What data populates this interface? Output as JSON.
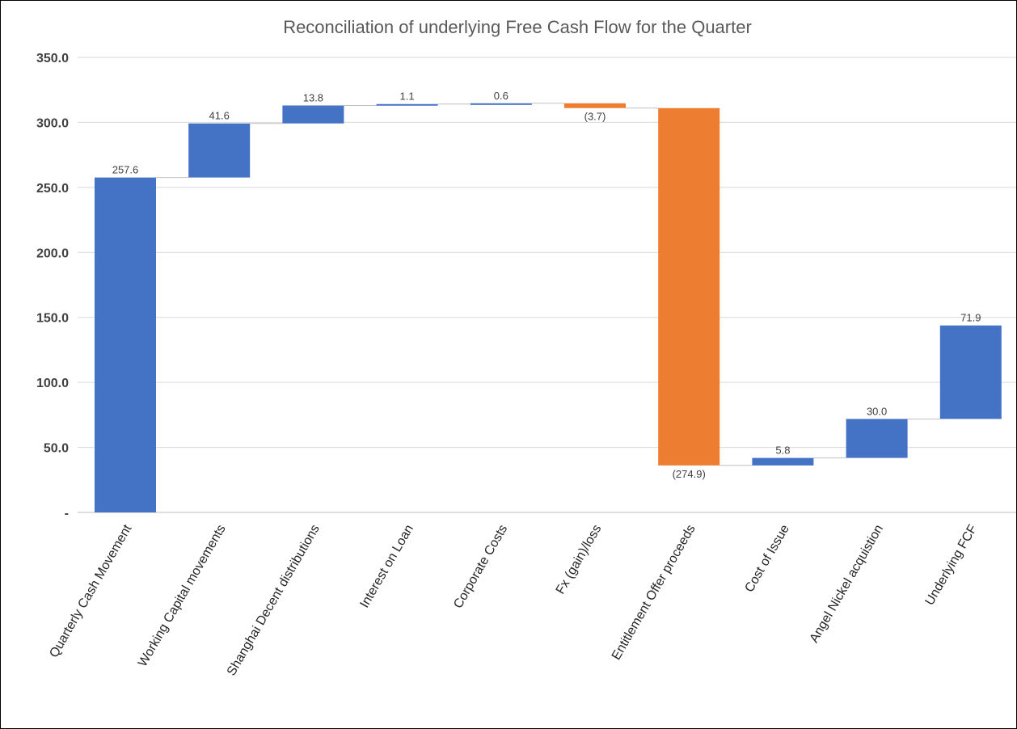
{
  "chart_data": {
    "type": "bar",
    "subtype": "waterfall",
    "title": "Reconciliation of underlying Free Cash Flow for the Quarter",
    "xlabel": "",
    "ylabel": "",
    "ylim": [
      0,
      350
    ],
    "grid": true,
    "yticks": [
      {
        "value": 0,
        "label": "-"
      },
      {
        "value": 50,
        "label": "50.0"
      },
      {
        "value": 100,
        "label": "100.0"
      },
      {
        "value": 150,
        "label": "150.0"
      },
      {
        "value": 200,
        "label": "200.0"
      },
      {
        "value": 250,
        "label": "250.0"
      },
      {
        "value": 300,
        "label": "300.0"
      },
      {
        "value": 350,
        "label": "350.0"
      }
    ],
    "categories": [
      "Quarterly Cash Movement",
      "Working Capital movements",
      "Shanghai Decent distributions",
      "Interest on Loan",
      "Corporate Costs",
      "Fx (gain)/loss",
      "Entitlement Offer proceeds",
      "Cost of Issue",
      "Angel Nickel acquistion",
      "Underlying FCF"
    ],
    "bars": [
      {
        "base": 0,
        "top": 257.6,
        "label": "257.6",
        "color": "#4472c4"
      },
      {
        "base": 257.6,
        "top": 299.2,
        "label": "41.6",
        "color": "#4472c4"
      },
      {
        "base": 299.2,
        "top": 313.0,
        "label": "13.8",
        "color": "#4472c4"
      },
      {
        "base": 313.0,
        "top": 314.1,
        "label": "1.1",
        "color": "#4472c4"
      },
      {
        "base": 314.1,
        "top": 314.7,
        "label": "0.6",
        "color": "#4472c4"
      },
      {
        "base": 311.0,
        "top": 314.7,
        "label": "(3.7)",
        "color": "#ed7d31"
      },
      {
        "base": 36.1,
        "top": 311.0,
        "label": "(274.9)",
        "color": "#ed7d31"
      },
      {
        "base": 36.1,
        "top": 41.9,
        "label": "5.8",
        "color": "#4472c4"
      },
      {
        "base": 41.9,
        "top": 71.9,
        "label": "30.0",
        "color": "#4472c4"
      },
      {
        "base": 71.9,
        "top": 143.8,
        "label": "71.9",
        "color": "#4472c4"
      }
    ],
    "colors": {
      "increase": "#4472c4",
      "decrease": "#ed7d31",
      "grid": "#d9d9d9"
    }
  }
}
